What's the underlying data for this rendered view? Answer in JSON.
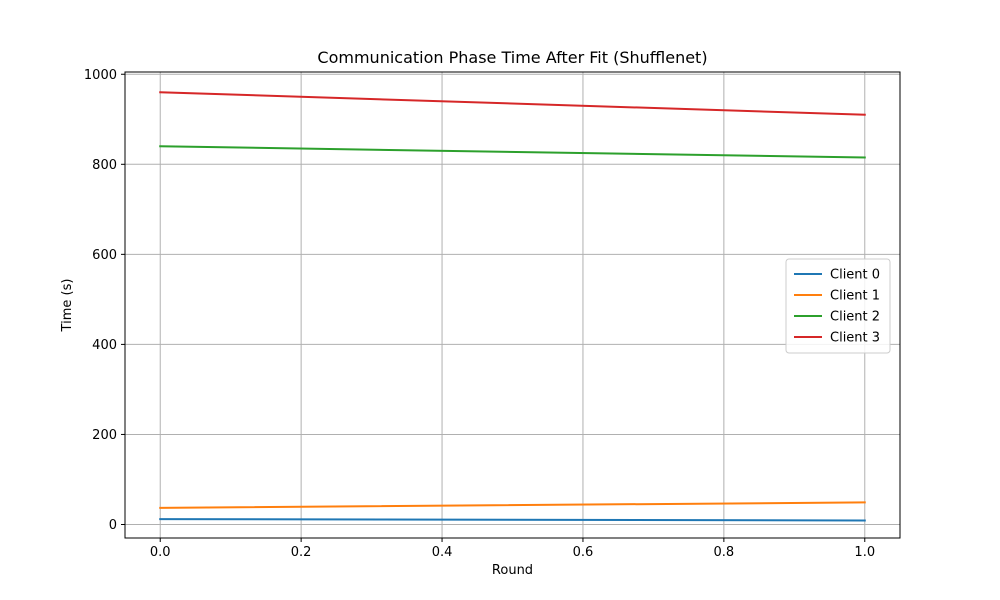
{
  "chart_data": {
    "type": "line",
    "title": "Communication Phase Time After Fit (Shufflenet)",
    "xlabel": "Round",
    "ylabel": "Time (s)",
    "xlim": [
      -0.05,
      1.05
    ],
    "ylim": [
      -30,
      1005
    ],
    "xticks": [
      0.0,
      0.2,
      0.4,
      0.6,
      0.8,
      1.0
    ],
    "xtick_labels": [
      "0.0",
      "0.2",
      "0.4",
      "0.6",
      "0.8",
      "1.0"
    ],
    "yticks": [
      0,
      200,
      400,
      600,
      800,
      1000
    ],
    "ytick_labels": [
      "0",
      "200",
      "400",
      "600",
      "800",
      "1000"
    ],
    "grid": true,
    "legend_position": "center-right",
    "x": [
      0.0,
      1.0
    ],
    "series": [
      {
        "name": "Client 0",
        "color": "#1f77b4",
        "values": [
          12,
          9
        ]
      },
      {
        "name": "Client 1",
        "color": "#ff7f0e",
        "values": [
          37,
          49
        ]
      },
      {
        "name": "Client 2",
        "color": "#2ca02c",
        "values": [
          840,
          815
        ]
      },
      {
        "name": "Client 3",
        "color": "#d62728",
        "values": [
          960,
          910
        ]
      }
    ]
  }
}
